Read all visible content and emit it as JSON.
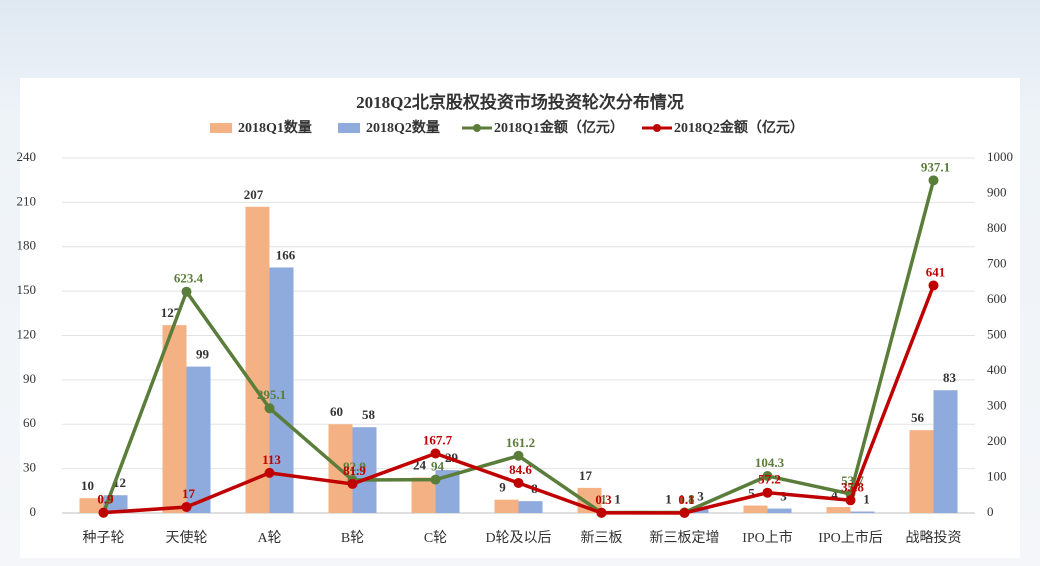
{
  "chart_data": {
    "type": "combo",
    "title": "2018Q2北京股权投资市场投资轮次分布情况",
    "categories": [
      "种子轮",
      "天使轮",
      "A轮",
      "B轮",
      "C轮",
      "D轮及以后",
      "新三板",
      "新三板定增",
      "IPO上市",
      "IPO上市后",
      "战略投资"
    ],
    "series": [
      {
        "name": "2018Q1数量",
        "type": "bar",
        "color": "#f4b183",
        "values": [
          10,
          127,
          207,
          60,
          24,
          9,
          17,
          1,
          5,
          4,
          56
        ]
      },
      {
        "name": "2018Q2数量",
        "type": "bar",
        "color": "#8faadc",
        "values": [
          12,
          99,
          166,
          58,
          29,
          8,
          1,
          3,
          3,
          1,
          83
        ]
      },
      {
        "name": "2018Q1金额（亿元）",
        "type": "line",
        "axis": "y2",
        "color": "#5a7d3a",
        "values": [
          0.7,
          623.4,
          295.1,
          92.9,
          94,
          161.2,
          1,
          1.8,
          104.3,
          53.7,
          937.1
        ]
      },
      {
        "name": "2018Q2金额（亿元）",
        "type": "line",
        "axis": "y2",
        "color": "#c00000",
        "values": [
          0.9,
          17,
          113,
          81.9,
          167.7,
          84.6,
          0.3,
          0.1,
          57.2,
          35.8,
          641
        ]
      }
    ],
    "ylim": [
      0,
      240
    ],
    "yticks": [
      0,
      30,
      60,
      90,
      120,
      150,
      180,
      210,
      240
    ],
    "y2lim": [
      0,
      1000
    ],
    "y2ticks": [
      0,
      100,
      200,
      300,
      400,
      500,
      600,
      700,
      800,
      900,
      1000
    ],
    "grid": true
  }
}
